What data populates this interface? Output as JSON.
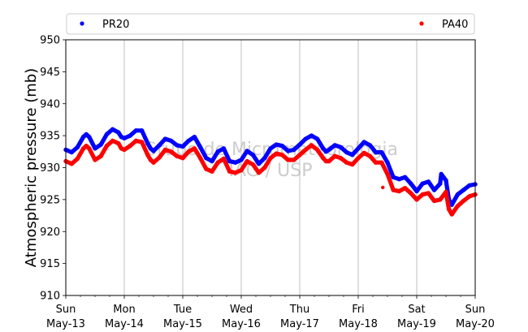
{
  "chart_data": {
    "type": "scatter",
    "ylabel": "Atmospheric pressure (mb)",
    "ylim": [
      910,
      950
    ],
    "yticks": [
      910,
      915,
      920,
      925,
      930,
      935,
      940,
      945,
      950
    ],
    "xlim": [
      0,
      7
    ],
    "xticks": [
      {
        "x": 0,
        "day": "Sun",
        "date": "May-13"
      },
      {
        "x": 1,
        "day": "Mon",
        "date": "May-14"
      },
      {
        "x": 2,
        "day": "Tue",
        "date": "May-15"
      },
      {
        "x": 3,
        "day": "Wed",
        "date": "May-16"
      },
      {
        "x": 4,
        "day": "Thu",
        "date": "May-17"
      },
      {
        "x": 5,
        "day": "Fri",
        "date": "May-18"
      },
      {
        "x": 6,
        "day": "Sat",
        "date": "May-19"
      },
      {
        "x": 7,
        "day": "Sun",
        "date": "May-20"
      }
    ],
    "grid": "vertical",
    "legend": "top",
    "watermark": [
      "Grupo de Micrometeorologia",
      "IAG / USP"
    ],
    "series": [
      {
        "name": "PR20",
        "color": "#0000ff",
        "x": [
          0.0,
          0.1,
          0.2,
          0.3,
          0.35,
          0.4,
          0.5,
          0.6,
          0.7,
          0.8,
          0.9,
          0.95,
          1.0,
          1.1,
          1.2,
          1.3,
          1.4,
          1.45,
          1.5,
          1.6,
          1.7,
          1.8,
          1.9,
          2.0,
          2.1,
          2.2,
          2.3,
          2.4,
          2.5,
          2.6,
          2.7,
          2.8,
          2.9,
          3.0,
          3.1,
          3.2,
          3.3,
          3.4,
          3.5,
          3.6,
          3.7,
          3.8,
          3.9,
          4.0,
          4.1,
          4.2,
          4.3,
          4.4,
          4.45,
          4.5,
          4.6,
          4.7,
          4.8,
          4.9,
          5.0,
          5.1,
          5.2,
          5.3,
          5.4,
          5.5,
          5.6,
          5.7,
          5.8,
          5.9,
          6.0,
          6.1,
          6.2,
          6.3,
          6.4,
          6.42,
          6.5,
          6.55,
          6.6,
          6.7,
          6.8,
          6.9,
          7.0
        ],
        "y": [
          932.8,
          932.4,
          933.2,
          934.8,
          935.2,
          934.8,
          933.0,
          933.6,
          935.2,
          936.0,
          935.5,
          934.8,
          934.6,
          935.0,
          935.8,
          935.8,
          933.8,
          933.0,
          932.6,
          933.5,
          934.5,
          934.2,
          933.5,
          933.3,
          934.2,
          934.8,
          933.2,
          931.5,
          931.0,
          932.5,
          933.0,
          931.0,
          930.8,
          931.2,
          932.6,
          932.0,
          930.6,
          931.5,
          933.0,
          933.6,
          933.4,
          932.6,
          932.8,
          933.6,
          934.5,
          935.0,
          934.5,
          933.0,
          932.5,
          932.8,
          933.5,
          933.2,
          932.4,
          932.0,
          933.0,
          934.0,
          933.5,
          932.4,
          932.4,
          930.8,
          928.5,
          928.2,
          928.5,
          927.5,
          926.3,
          927.5,
          927.8,
          926.5,
          927.5,
          929.0,
          928.0,
          925.0,
          924.2,
          925.8,
          926.5,
          927.2,
          927.4
        ]
      },
      {
        "name": "PA40",
        "color": "#ff0000",
        "x": [
          0.0,
          0.1,
          0.2,
          0.3,
          0.35,
          0.4,
          0.5,
          0.6,
          0.7,
          0.8,
          0.9,
          0.95,
          1.0,
          1.1,
          1.2,
          1.3,
          1.4,
          1.45,
          1.5,
          1.6,
          1.7,
          1.8,
          1.9,
          2.0,
          2.1,
          2.2,
          2.3,
          2.4,
          2.5,
          2.6,
          2.7,
          2.8,
          2.9,
          3.0,
          3.1,
          3.2,
          3.3,
          3.4,
          3.5,
          3.6,
          3.7,
          3.8,
          3.9,
          4.0,
          4.1,
          4.2,
          4.3,
          4.4,
          4.45,
          4.5,
          4.6,
          4.7,
          4.8,
          4.9,
          5.0,
          5.1,
          5.2,
          5.3,
          5.4,
          5.5,
          5.6,
          5.7,
          5.8,
          5.9,
          6.0,
          6.1,
          6.2,
          6.3,
          6.4,
          6.5,
          6.55,
          6.6,
          6.7,
          6.8,
          6.9,
          7.0
        ],
        "y": [
          931.0,
          930.6,
          931.4,
          933.0,
          933.4,
          933.0,
          931.2,
          931.8,
          933.4,
          934.2,
          933.8,
          933.0,
          932.8,
          933.4,
          934.2,
          934.0,
          932.0,
          931.2,
          930.8,
          931.6,
          932.8,
          932.5,
          931.8,
          931.5,
          932.5,
          933.0,
          931.5,
          929.8,
          929.4,
          930.8,
          931.4,
          929.4,
          929.2,
          929.6,
          931.0,
          930.5,
          929.2,
          930.0,
          931.5,
          932.2,
          932.0,
          931.2,
          931.2,
          932.0,
          932.8,
          933.5,
          932.8,
          931.5,
          931.0,
          931.0,
          931.8,
          931.5,
          930.8,
          930.5,
          931.5,
          932.3,
          931.8,
          930.8,
          930.8,
          929.0,
          926.5,
          926.3,
          926.8,
          926.0,
          925.0,
          925.8,
          926.0,
          924.8,
          925.0,
          926.2,
          923.5,
          922.7,
          924.0,
          924.8,
          925.5,
          925.8
        ]
      }
    ],
    "outliers": [
      {
        "series": "PA40",
        "x": 5.42,
        "y": 926.9
      }
    ]
  }
}
